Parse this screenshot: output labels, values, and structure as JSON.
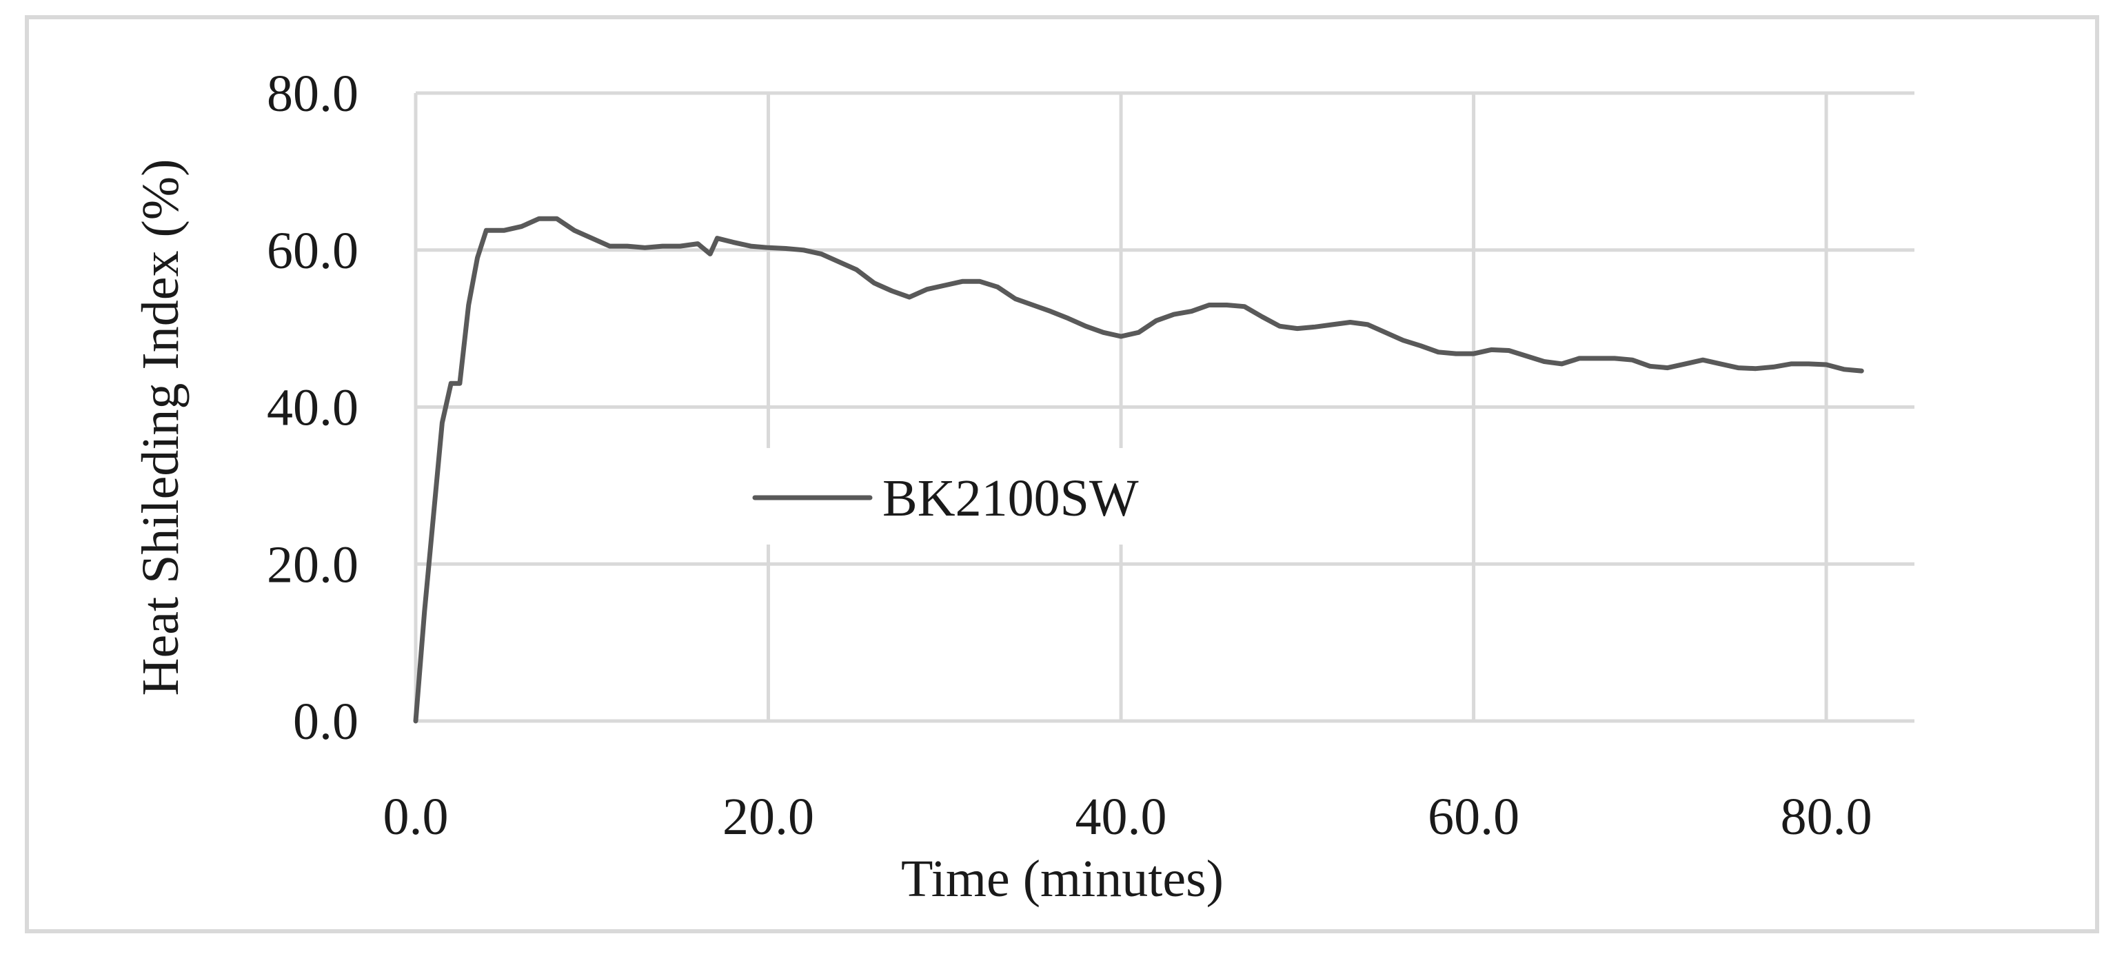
{
  "chart_data": {
    "type": "line",
    "title": "",
    "xlabel": "Time (minutes)",
    "ylabel": "Heat Shileding Index (%)",
    "xlim": [
      0,
      85
    ],
    "ylim": [
      0,
      80
    ],
    "x_ticks": [
      0,
      20,
      40,
      60,
      80
    ],
    "x_tick_labels": [
      "0.0",
      "20.0",
      "40.0",
      "60.0",
      "80.0"
    ],
    "y_ticks": [
      0,
      20,
      40,
      60,
      80
    ],
    "y_tick_labels": [
      "0.0",
      "20.0",
      "40.0",
      "60.0",
      "80.0"
    ],
    "grid": true,
    "legend_position": "center-left",
    "series": [
      {
        "name": "BK2100SW",
        "color": "#595959",
        "points": [
          [
            0,
            0
          ],
          [
            0.5,
            14
          ],
          [
            1,
            26
          ],
          [
            1.5,
            38
          ],
          [
            2,
            43
          ],
          [
            2.5,
            43
          ],
          [
            3,
            53
          ],
          [
            3.5,
            59
          ],
          [
            4,
            62.5
          ],
          [
            5,
            62.5
          ],
          [
            6,
            63
          ],
          [
            7,
            64
          ],
          [
            8,
            64
          ],
          [
            9,
            62.5
          ],
          [
            10,
            61.5
          ],
          [
            11,
            60.5
          ],
          [
            12,
            60.5
          ],
          [
            13,
            60.3
          ],
          [
            14,
            60.5
          ],
          [
            15,
            60.5
          ],
          [
            16,
            60.8
          ],
          [
            16.7,
            59.5
          ],
          [
            17.1,
            61.5
          ],
          [
            18,
            61
          ],
          [
            19,
            60.5
          ],
          [
            20,
            60.3
          ],
          [
            21,
            60.2
          ],
          [
            22,
            60
          ],
          [
            23,
            59.5
          ],
          [
            24,
            58.5
          ],
          [
            25,
            57.5
          ],
          [
            26,
            55.8
          ],
          [
            27,
            54.8
          ],
          [
            28,
            54
          ],
          [
            29,
            55
          ],
          [
            30,
            55.5
          ],
          [
            31,
            56
          ],
          [
            32,
            56
          ],
          [
            33,
            55.3
          ],
          [
            34,
            53.8
          ],
          [
            35,
            53
          ],
          [
            36,
            52.2
          ],
          [
            37,
            51.3
          ],
          [
            38,
            50.3
          ],
          [
            39,
            49.5
          ],
          [
            40,
            49
          ],
          [
            41,
            49.5
          ],
          [
            42,
            51
          ],
          [
            43,
            51.8
          ],
          [
            44,
            52.2
          ],
          [
            45,
            53
          ],
          [
            46,
            53
          ],
          [
            47,
            52.8
          ],
          [
            48,
            51.5
          ],
          [
            49,
            50.3
          ],
          [
            50,
            50
          ],
          [
            51,
            50.2
          ],
          [
            52,
            50.5
          ],
          [
            53,
            50.8
          ],
          [
            54,
            50.5
          ],
          [
            55,
            49.5
          ],
          [
            56,
            48.5
          ],
          [
            57,
            47.8
          ],
          [
            58,
            47
          ],
          [
            59,
            46.8
          ],
          [
            60,
            46.8
          ],
          [
            61,
            47.3
          ],
          [
            62,
            47.2
          ],
          [
            63,
            46.5
          ],
          [
            64,
            45.8
          ],
          [
            65,
            45.5
          ],
          [
            66,
            46.2
          ],
          [
            67,
            46.2
          ],
          [
            68,
            46.2
          ],
          [
            69,
            46
          ],
          [
            70,
            45.2
          ],
          [
            71,
            45
          ],
          [
            72,
            45.5
          ],
          [
            73,
            46
          ],
          [
            74,
            45.5
          ],
          [
            75,
            45
          ],
          [
            76,
            44.9
          ],
          [
            77,
            45.1
          ],
          [
            78,
            45.5
          ],
          [
            79,
            45.5
          ],
          [
            80,
            45.4
          ],
          [
            81,
            44.8
          ],
          [
            82,
            44.6
          ]
        ]
      }
    ]
  }
}
